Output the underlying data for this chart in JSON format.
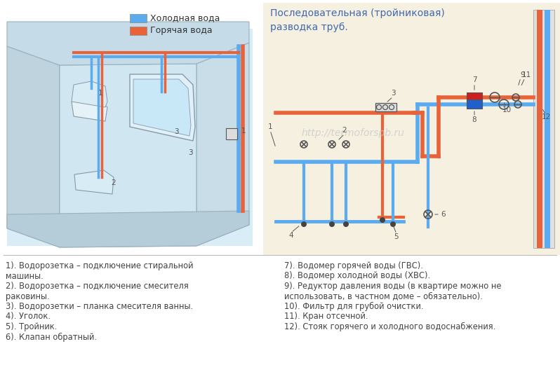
{
  "bg_color": "#ffffff",
  "legend_cold_color": "#5aabf0",
  "legend_hot_color": "#e8623a",
  "legend_cold_label": "Холодная вода",
  "legend_hot_label": "Горячая вода",
  "right_diagram_title": "Последовательная (тройниковая)\nразводка труб.",
  "right_diagram_title_color": "#4169b0",
  "right_bg_color": "#f5f0e0",
  "watermark": "http://termoforspb.ru",
  "watermark_color": "#c8c8c8",
  "left_items_line1": "1). Водорозетка – подключение стиральной",
  "left_items_line2": "машины.",
  "left_items_line3": "2). Водорозетка – подключение смесителя",
  "left_items_line4": "раковины.",
  "left_items_line5": "3). Водорозетки – планка смесителя ванны.",
  "left_items_line6": "4). Уголок.",
  "left_items_line7": "5). Тройник.",
  "left_items_line8": "6). Клапан обратный.",
  "right_items_line1": "7). Водомер горячей воды (ГВС).",
  "right_items_line2": "8). Водомер холодной воды (ХВС).",
  "right_items_line3": "9). Редуктор давления воды (в квартире можно не",
  "right_items_line4": "использовать, в частном доме – обязательно).",
  "right_items_line5": "10). Фильтр для грубой очистки.",
  "right_items_line6": "11). Кран отсечной.",
  "right_items_line7": "12). Стояк горячего и холодного водоснабжения.",
  "text_color": "#444444",
  "cold_color": "#5aabf0",
  "hot_color": "#e8623a"
}
